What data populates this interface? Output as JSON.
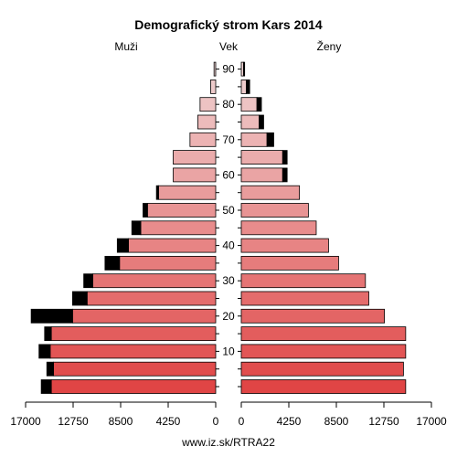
{
  "chart_data": {
    "type": "bar",
    "title": "Demografický strom Kars 2014",
    "left_label": "Muži",
    "center_label": "Vek",
    "right_label": "Ženy",
    "source": "www.iz.sk/RTRA22",
    "age_groups": [
      "0-4",
      "5-9",
      "10-14",
      "15-19",
      "20-24",
      "25-29",
      "30-34",
      "35-39",
      "40-44",
      "45-49",
      "50-54",
      "55-59",
      "60-64",
      "65-69",
      "70-74",
      "75-79",
      "80-84",
      "85-89",
      "90+"
    ],
    "age_tick_labels": [
      "10",
      "20",
      "30",
      "40",
      "50",
      "60",
      "70",
      "80",
      "90"
    ],
    "x_tick_labels_left": [
      "17000",
      "12750",
      "8500",
      "4250",
      "0"
    ],
    "x_tick_labels_right": [
      "0",
      "4250",
      "8500",
      "12750",
      "17000"
    ],
    "xlim": [
      0,
      17000
    ],
    "series": [
      {
        "name": "Muži",
        "side": "left",
        "base": [
          14700,
          14500,
          14800,
          14700,
          12800,
          11500,
          11000,
          8600,
          7800,
          6700,
          6100,
          5100,
          3800,
          3800,
          2300,
          1600,
          1400,
          450,
          150
        ],
        "excess": [
          900,
          600,
          1000,
          600,
          3700,
          1300,
          800,
          1300,
          1000,
          800,
          400,
          200,
          0,
          0,
          0,
          0,
          0,
          0,
          0
        ]
      },
      {
        "name": "Ženy",
        "side": "right",
        "base": [
          14700,
          14500,
          14700,
          14700,
          12800,
          11400,
          11100,
          8700,
          7800,
          6700,
          6000,
          5200,
          3700,
          3700,
          2300,
          1600,
          1400,
          450,
          200
        ],
        "excess": [
          0,
          0,
          0,
          0,
          0,
          0,
          0,
          0,
          0,
          0,
          0,
          0,
          400,
          400,
          600,
          400,
          400,
          300,
          100
        ]
      }
    ],
    "colors": {
      "male_top": "#efd3d3",
      "male_bottom": "#e04545",
      "female_top": "#efd3d3",
      "female_bottom": "#e04545",
      "excess": "#000000"
    }
  }
}
